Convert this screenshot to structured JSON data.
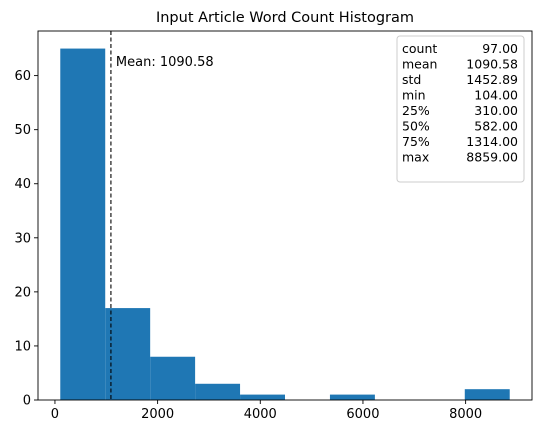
{
  "chart_data": {
    "type": "bar",
    "title": "Input Article Word Count Histogram",
    "xlabel": "",
    "ylabel": "",
    "xlim": [
      -330,
      9293
    ],
    "ylim": [
      0,
      68.25
    ],
    "grid": false,
    "bar_color": "#1f77b4",
    "bins": [
      {
        "start": 104.0,
        "end": 979.5,
        "count": 65
      },
      {
        "start": 979.5,
        "end": 1855.0,
        "count": 17
      },
      {
        "start": 1855.0,
        "end": 2730.5,
        "count": 8
      },
      {
        "start": 2730.5,
        "end": 3606.0,
        "count": 3
      },
      {
        "start": 3606.0,
        "end": 4481.5,
        "count": 1
      },
      {
        "start": 4481.5,
        "end": 5357.0,
        "count": 0
      },
      {
        "start": 5357.0,
        "end": 6232.5,
        "count": 1
      },
      {
        "start": 6232.5,
        "end": 7108.0,
        "count": 0
      },
      {
        "start": 7108.0,
        "end": 7983.5,
        "count": 0
      },
      {
        "start": 7983.5,
        "end": 8859.0,
        "count": 2
      }
    ],
    "x_ticks": [
      0,
      2000,
      4000,
      6000,
      8000
    ],
    "x_tick_labels": [
      "0",
      "2000",
      "4000",
      "6000",
      "8000"
    ],
    "y_ticks": [
      0,
      10,
      20,
      30,
      40,
      50,
      60
    ],
    "y_tick_labels": [
      "0",
      "10",
      "20",
      "30",
      "40",
      "50",
      "60"
    ],
    "mean_line": {
      "value": 1090.58,
      "label": "Mean: 1090.58",
      "style": "dashed",
      "color": "#000000"
    },
    "stats_box": {
      "placement": "top-right",
      "rows": [
        {
          "key": "count",
          "value": "97.00"
        },
        {
          "key": "mean",
          "value": "1090.58"
        },
        {
          "key": "std",
          "value": "1452.89"
        },
        {
          "key": "min",
          "value": "104.00"
        },
        {
          "key": "25%",
          "value": "310.00"
        },
        {
          "key": "50%",
          "value": "582.00"
        },
        {
          "key": "75%",
          "value": "1314.00"
        },
        {
          "key": "max",
          "value": "8859.00"
        }
      ]
    }
  }
}
